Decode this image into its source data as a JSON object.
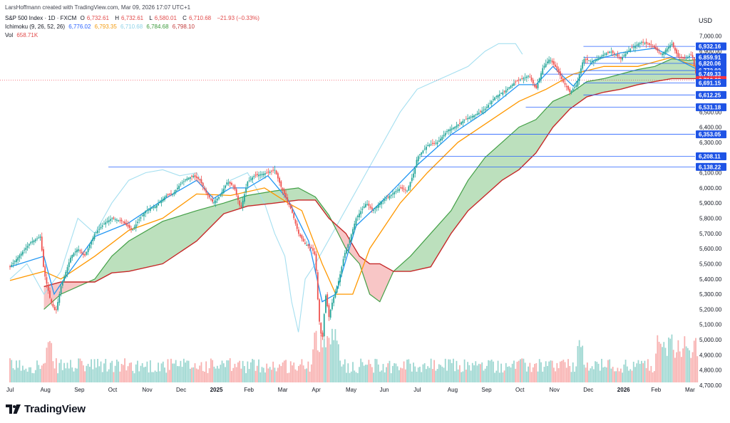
{
  "header": {
    "credit": "LarsHoffmann created with TradingView.com, Mar 09, 2026 17:07 UTC+1",
    "symbol": "S&P 500 Index · 1D · FXCM",
    "ohlc": {
      "o_label": "O",
      "o": "6,732.61",
      "h_label": "H",
      "h": "6,732.61",
      "l_label": "L",
      "l": "6,580.01",
      "c_label": "C",
      "c": "6,710.68",
      "change": "−21.93 (−0.33%)"
    },
    "ichimoku": {
      "label": "Ichimoku (9, 26, 52, 26)",
      "v1": "6,776.02",
      "v2": "6,793.35",
      "v3": "6,710.68",
      "v4": "6,784.68",
      "v5": "6,798.10"
    },
    "volume": {
      "label": "Vol",
      "value": "658.71K"
    }
  },
  "currency": "USD",
  "logo": {
    "text": "TradingView"
  },
  "colors": {
    "up": "#26a69a",
    "down": "#ef5350",
    "tenkan": "#2196f3",
    "kijun": "#ff9800",
    "chikou": "#a5dff0",
    "spanA": "#43a047",
    "spanB": "#c62828",
    "cloudBull": "#a5d6a7",
    "cloudBear": "#f6b3b3",
    "hline": "#2962ff",
    "badge": "#1e53e5",
    "lastBadge": "#f23645"
  },
  "chart_data": {
    "type": "candlestick",
    "x_axis": {
      "tick_labels": [
        "Jul",
        "Aug",
        "Sep",
        "Oct",
        "Nov",
        "Dec",
        "2025",
        "Feb",
        "Mar",
        "Apr",
        "May",
        "Jun",
        "Jul",
        "Aug",
        "Sep",
        "Oct",
        "Nov",
        "Dec",
        "2026",
        "Feb",
        "Mar"
      ]
    },
    "y_axis": {
      "range": [
        4700,
        7050
      ],
      "tick_labels": [
        "7,000.00",
        "6,900.00",
        "6,800.00",
        "6,700.00",
        "6,600.00",
        "6,500.00",
        "6,400.00",
        "6,300.00",
        "6,200.00",
        "6,100.00",
        "6,000.00",
        "5,900.00",
        "5,800.00",
        "5,700.00",
        "5,600.00",
        "5,500.00",
        "5,400.00",
        "5,300.00",
        "5,200.00",
        "5,100.00",
        "5,000.00",
        "4,900.00",
        "4,800.00",
        "4,700.00"
      ],
      "tick_values": [
        7000,
        6900,
        6800,
        6700,
        6600,
        6500,
        6400,
        6300,
        6200,
        6100,
        6000,
        5900,
        5800,
        5700,
        5600,
        5500,
        5400,
        5300,
        5200,
        5100,
        5000,
        4900,
        4800,
        4700
      ]
    },
    "price_line_badges": [
      {
        "label": "6,932.16",
        "value": 6932.16
      },
      {
        "label": "6,859.91",
        "value": 6859.91
      },
      {
        "label": "6,820.06",
        "value": 6820.06
      },
      {
        "label": "6,772.92",
        "value": 6772.92
      },
      {
        "label": "6,749.33",
        "value": 6749.33
      },
      {
        "label": "6,710.68",
        "value": 6710.68,
        "last": true
      },
      {
        "label": "6,691.15",
        "value": 6691.15
      },
      {
        "label": "6,612.25",
        "value": 6612.25
      },
      {
        "label": "6,531.18",
        "value": 6531.18
      },
      {
        "label": "6,353.05",
        "value": 6353.05
      },
      {
        "label": "6,208.11",
        "value": 6208.11
      },
      {
        "label": "6,138.22",
        "value": 6138.22
      }
    ],
    "horizontal_lines": [
      {
        "value": 6932.16,
        "from_month_index": 16.9
      },
      {
        "value": 6859.91,
        "from_month_index": 16.9
      },
      {
        "value": 6820.06,
        "from_month_index": 16.9
      },
      {
        "value": 6772.92,
        "from_month_index": 16.9
      },
      {
        "value": 6749.33,
        "from_month_index": 15.7
      },
      {
        "value": 6691.15,
        "from_month_index": 16.9
      },
      {
        "value": 6612.25,
        "from_month_index": 16.9
      },
      {
        "value": 6531.18,
        "from_month_index": 15.2
      },
      {
        "value": 6353.05,
        "from_month_index": 13.0
      },
      {
        "value": 6208.11,
        "from_month_index": 12.1
      },
      {
        "value": 6138.22,
        "from_month_index": 2.9
      }
    ],
    "close_path": [
      [
        0,
        5480
      ],
      [
        0.3,
        5560
      ],
      [
        0.6,
        5640
      ],
      [
        0.9,
        5680
      ],
      [
        1.0,
        5450
      ],
      [
        1.2,
        5250
      ],
      [
        1.35,
        5180
      ],
      [
        1.5,
        5350
      ],
      [
        1.8,
        5550
      ],
      [
        2.0,
        5600
      ],
      [
        2.2,
        5550
      ],
      [
        2.5,
        5700
      ],
      [
        2.8,
        5770
      ],
      [
        3.0,
        5800
      ],
      [
        3.3,
        5780
      ],
      [
        3.6,
        5720
      ],
      [
        3.8,
        5790
      ],
      [
        4.0,
        5850
      ],
      [
        4.3,
        5880
      ],
      [
        4.6,
        5950
      ],
      [
        4.8,
        5960
      ],
      [
        5.0,
        6020
      ],
      [
        5.2,
        6060
      ],
      [
        5.4,
        6080
      ],
      [
        5.6,
        6050
      ],
      [
        5.8,
        5960
      ],
      [
        6.0,
        5900
      ],
      [
        6.2,
        5950
      ],
      [
        6.4,
        6040
      ],
      [
        6.6,
        6010
      ],
      [
        6.8,
        5860
      ],
      [
        7.0,
        6040
      ],
      [
        7.2,
        6080
      ],
      [
        7.4,
        6090
      ],
      [
        7.6,
        6100
      ],
      [
        7.8,
        6120
      ],
      [
        8.0,
        6000
      ],
      [
        8.3,
        5850
      ],
      [
        8.5,
        5700
      ],
      [
        8.7,
        5630
      ],
      [
        8.9,
        5600
      ],
      [
        9.0,
        5550
      ],
      [
        9.1,
        5150
      ],
      [
        9.2,
        4980
      ],
      [
        9.3,
        5300
      ],
      [
        9.4,
        5150
      ],
      [
        9.5,
        5250
      ],
      [
        9.7,
        5400
      ],
      [
        9.85,
        5560
      ],
      [
        10.0,
        5650
      ],
      [
        10.2,
        5800
      ],
      [
        10.5,
        5900
      ],
      [
        10.7,
        5850
      ],
      [
        10.9,
        5900
      ],
      [
        11.2,
        5950
      ],
      [
        11.5,
        6000
      ],
      [
        11.7,
        5980
      ],
      [
        11.9,
        6100
      ],
      [
        12.0,
        6200
      ],
      [
        12.3,
        6280
      ],
      [
        12.6,
        6300
      ],
      [
        12.9,
        6380
      ],
      [
        13.1,
        6400
      ],
      [
        13.4,
        6450
      ],
      [
        13.7,
        6480
      ],
      [
        14.0,
        6520
      ],
      [
        14.3,
        6600
      ],
      [
        14.6,
        6640
      ],
      [
        14.9,
        6700
      ],
      [
        15.1,
        6720
      ],
      [
        15.3,
        6740
      ],
      [
        15.5,
        6650
      ],
      [
        15.7,
        6790
      ],
      [
        15.9,
        6850
      ],
      [
        16.1,
        6790
      ],
      [
        16.3,
        6700
      ],
      [
        16.5,
        6630
      ],
      [
        16.7,
        6680
      ],
      [
        16.9,
        6850
      ],
      [
        17.2,
        6830
      ],
      [
        17.5,
        6880
      ],
      [
        17.7,
        6900
      ],
      [
        18.0,
        6850
      ],
      [
        18.3,
        6920
      ],
      [
        18.6,
        6960
      ],
      [
        18.9,
        6940
      ],
      [
        19.2,
        6880
      ],
      [
        19.5,
        6950
      ],
      [
        19.7,
        6860
      ],
      [
        19.9,
        6850
      ],
      [
        20.1,
        6880
      ],
      [
        20.2,
        6760
      ],
      [
        20.3,
        6710
      ]
    ],
    "tenkan_path": [
      [
        0,
        5480
      ],
      [
        1.0,
        5550
      ],
      [
        1.3,
        5300
      ],
      [
        1.6,
        5400
      ],
      [
        2.5,
        5680
      ],
      [
        3.5,
        5770
      ],
      [
        4.5,
        5920
      ],
      [
        5.5,
        6050
      ],
      [
        6.0,
        5930
      ],
      [
        6.5,
        6000
      ],
      [
        7.0,
        6000
      ],
      [
        7.6,
        6080
      ],
      [
        8.2,
        5920
      ],
      [
        8.8,
        5650
      ],
      [
        9.2,
        5250
      ],
      [
        9.6,
        5300
      ],
      [
        10.2,
        5750
      ],
      [
        11.0,
        5920
      ],
      [
        12.0,
        6150
      ],
      [
        13.0,
        6350
      ],
      [
        14.0,
        6500
      ],
      [
        15.0,
        6680
      ],
      [
        15.5,
        6680
      ],
      [
        16.0,
        6800
      ],
      [
        16.6,
        6670
      ],
      [
        17.2,
        6840
      ],
      [
        18.0,
        6890
      ],
      [
        19.0,
        6920
      ],
      [
        20.3,
        6776
      ]
    ],
    "kijun_path": [
      [
        0,
        5390
      ],
      [
        1.0,
        5450
      ],
      [
        1.5,
        5400
      ],
      [
        2.5,
        5550
      ],
      [
        3.5,
        5720
      ],
      [
        4.5,
        5800
      ],
      [
        5.5,
        5960
      ],
      [
        6.5,
        5950
      ],
      [
        7.5,
        6000
      ],
      [
        8.2,
        5900
      ],
      [
        8.6,
        5850
      ],
      [
        9.2,
        5500
      ],
      [
        9.6,
        5300
      ],
      [
        10.1,
        5300
      ],
      [
        10.6,
        5600
      ],
      [
        11.5,
        5900
      ],
      [
        12.3,
        6100
      ],
      [
        13.2,
        6300
      ],
      [
        14.2,
        6450
      ],
      [
        15.0,
        6570
      ],
      [
        15.8,
        6650
      ],
      [
        16.6,
        6750
      ],
      [
        17.5,
        6800
      ],
      [
        18.5,
        6800
      ],
      [
        19.5,
        6860
      ],
      [
        20.3,
        6793
      ]
    ],
    "chikou_path": [
      [
        0,
        5400
      ],
      [
        0.5,
        5500
      ],
      [
        1.0,
        5300
      ],
      [
        1.5,
        5450
      ],
      [
        2.0,
        5800
      ],
      [
        2.5,
        5700
      ],
      [
        3.0,
        5900
      ],
      [
        3.5,
        6050
      ],
      [
        4.0,
        6100
      ],
      [
        4.5,
        6120
      ],
      [
        5.0,
        6080
      ],
      [
        5.5,
        6100
      ],
      [
        6.0,
        5900
      ],
      [
        6.5,
        6050
      ],
      [
        7.0,
        6100
      ],
      [
        7.5,
        5900
      ],
      [
        7.8,
        5700
      ],
      [
        8.1,
        5550
      ],
      [
        8.3,
        5250
      ],
      [
        8.5,
        5050
      ],
      [
        8.7,
        5400
      ],
      [
        9.0,
        5500
      ],
      [
        9.5,
        5700
      ],
      [
        10.0,
        5900
      ],
      [
        10.5,
        6100
      ],
      [
        11.0,
        6300
      ],
      [
        11.5,
        6500
      ],
      [
        12.0,
        6650
      ],
      [
        12.5,
        6700
      ],
      [
        13.0,
        6750
      ],
      [
        13.5,
        6800
      ],
      [
        14.0,
        6900
      ],
      [
        14.4,
        6950
      ],
      [
        14.9,
        6950
      ],
      [
        15.1,
        6880
      ]
    ],
    "span_a_path": [
      [
        1.0,
        5200
      ],
      [
        1.5,
        5300
      ],
      [
        2.5,
        5400
      ],
      [
        3.0,
        5550
      ],
      [
        3.5,
        5650
      ],
      [
        4.5,
        5780
      ],
      [
        5.5,
        5850
      ],
      [
        6.3,
        5900
      ],
      [
        7.0,
        5950
      ],
      [
        7.8,
        5980
      ],
      [
        8.5,
        6000
      ],
      [
        9.0,
        5940
      ],
      [
        9.4,
        5820
      ],
      [
        9.9,
        5600
      ],
      [
        10.3,
        5500
      ],
      [
        10.6,
        5300
      ],
      [
        10.9,
        5250
      ],
      [
        11.3,
        5450
      ],
      [
        11.8,
        5550
      ],
      [
        12.4,
        5700
      ],
      [
        13.0,
        5850
      ],
      [
        13.5,
        6050
      ],
      [
        14.0,
        6200
      ],
      [
        14.5,
        6300
      ],
      [
        15.0,
        6400
      ],
      [
        15.5,
        6450
      ],
      [
        16.0,
        6570
      ],
      [
        16.5,
        6620
      ],
      [
        17.0,
        6700
      ],
      [
        17.5,
        6720
      ],
      [
        18.0,
        6750
      ],
      [
        18.5,
        6780
      ],
      [
        19.0,
        6800
      ],
      [
        19.5,
        6850
      ],
      [
        20.0,
        6840
      ],
      [
        20.5,
        6850
      ]
    ],
    "span_b_path": [
      [
        1.0,
        5350
      ],
      [
        1.5,
        5380
      ],
      [
        2.5,
        5380
      ],
      [
        3.0,
        5440
      ],
      [
        3.5,
        5450
      ],
      [
        4.5,
        5500
      ],
      [
        5.5,
        5650
      ],
      [
        6.3,
        5830
      ],
      [
        7.0,
        5880
      ],
      [
        7.8,
        5900
      ],
      [
        8.5,
        5920
      ],
      [
        9.0,
        5920
      ],
      [
        9.4,
        5800
      ],
      [
        9.9,
        5700
      ],
      [
        10.3,
        5550
      ],
      [
        10.6,
        5500
      ],
      [
        10.9,
        5500
      ],
      [
        11.3,
        5450
      ],
      [
        11.8,
        5450
      ],
      [
        12.4,
        5480
      ],
      [
        13.0,
        5700
      ],
      [
        13.5,
        5850
      ],
      [
        14.0,
        5950
      ],
      [
        14.5,
        6050
      ],
      [
        15.0,
        6120
      ],
      [
        15.5,
        6230
      ],
      [
        16.0,
        6400
      ],
      [
        16.5,
        6520
      ],
      [
        17.0,
        6600
      ],
      [
        17.5,
        6630
      ],
      [
        18.0,
        6650
      ],
      [
        18.5,
        6680
      ],
      [
        19.0,
        6700
      ],
      [
        19.5,
        6720
      ],
      [
        20.0,
        6720
      ],
      [
        20.5,
        6720
      ]
    ],
    "volume_scale": {
      "max_value": 1000,
      "note": "relative volume, arbitrary units"
    }
  }
}
